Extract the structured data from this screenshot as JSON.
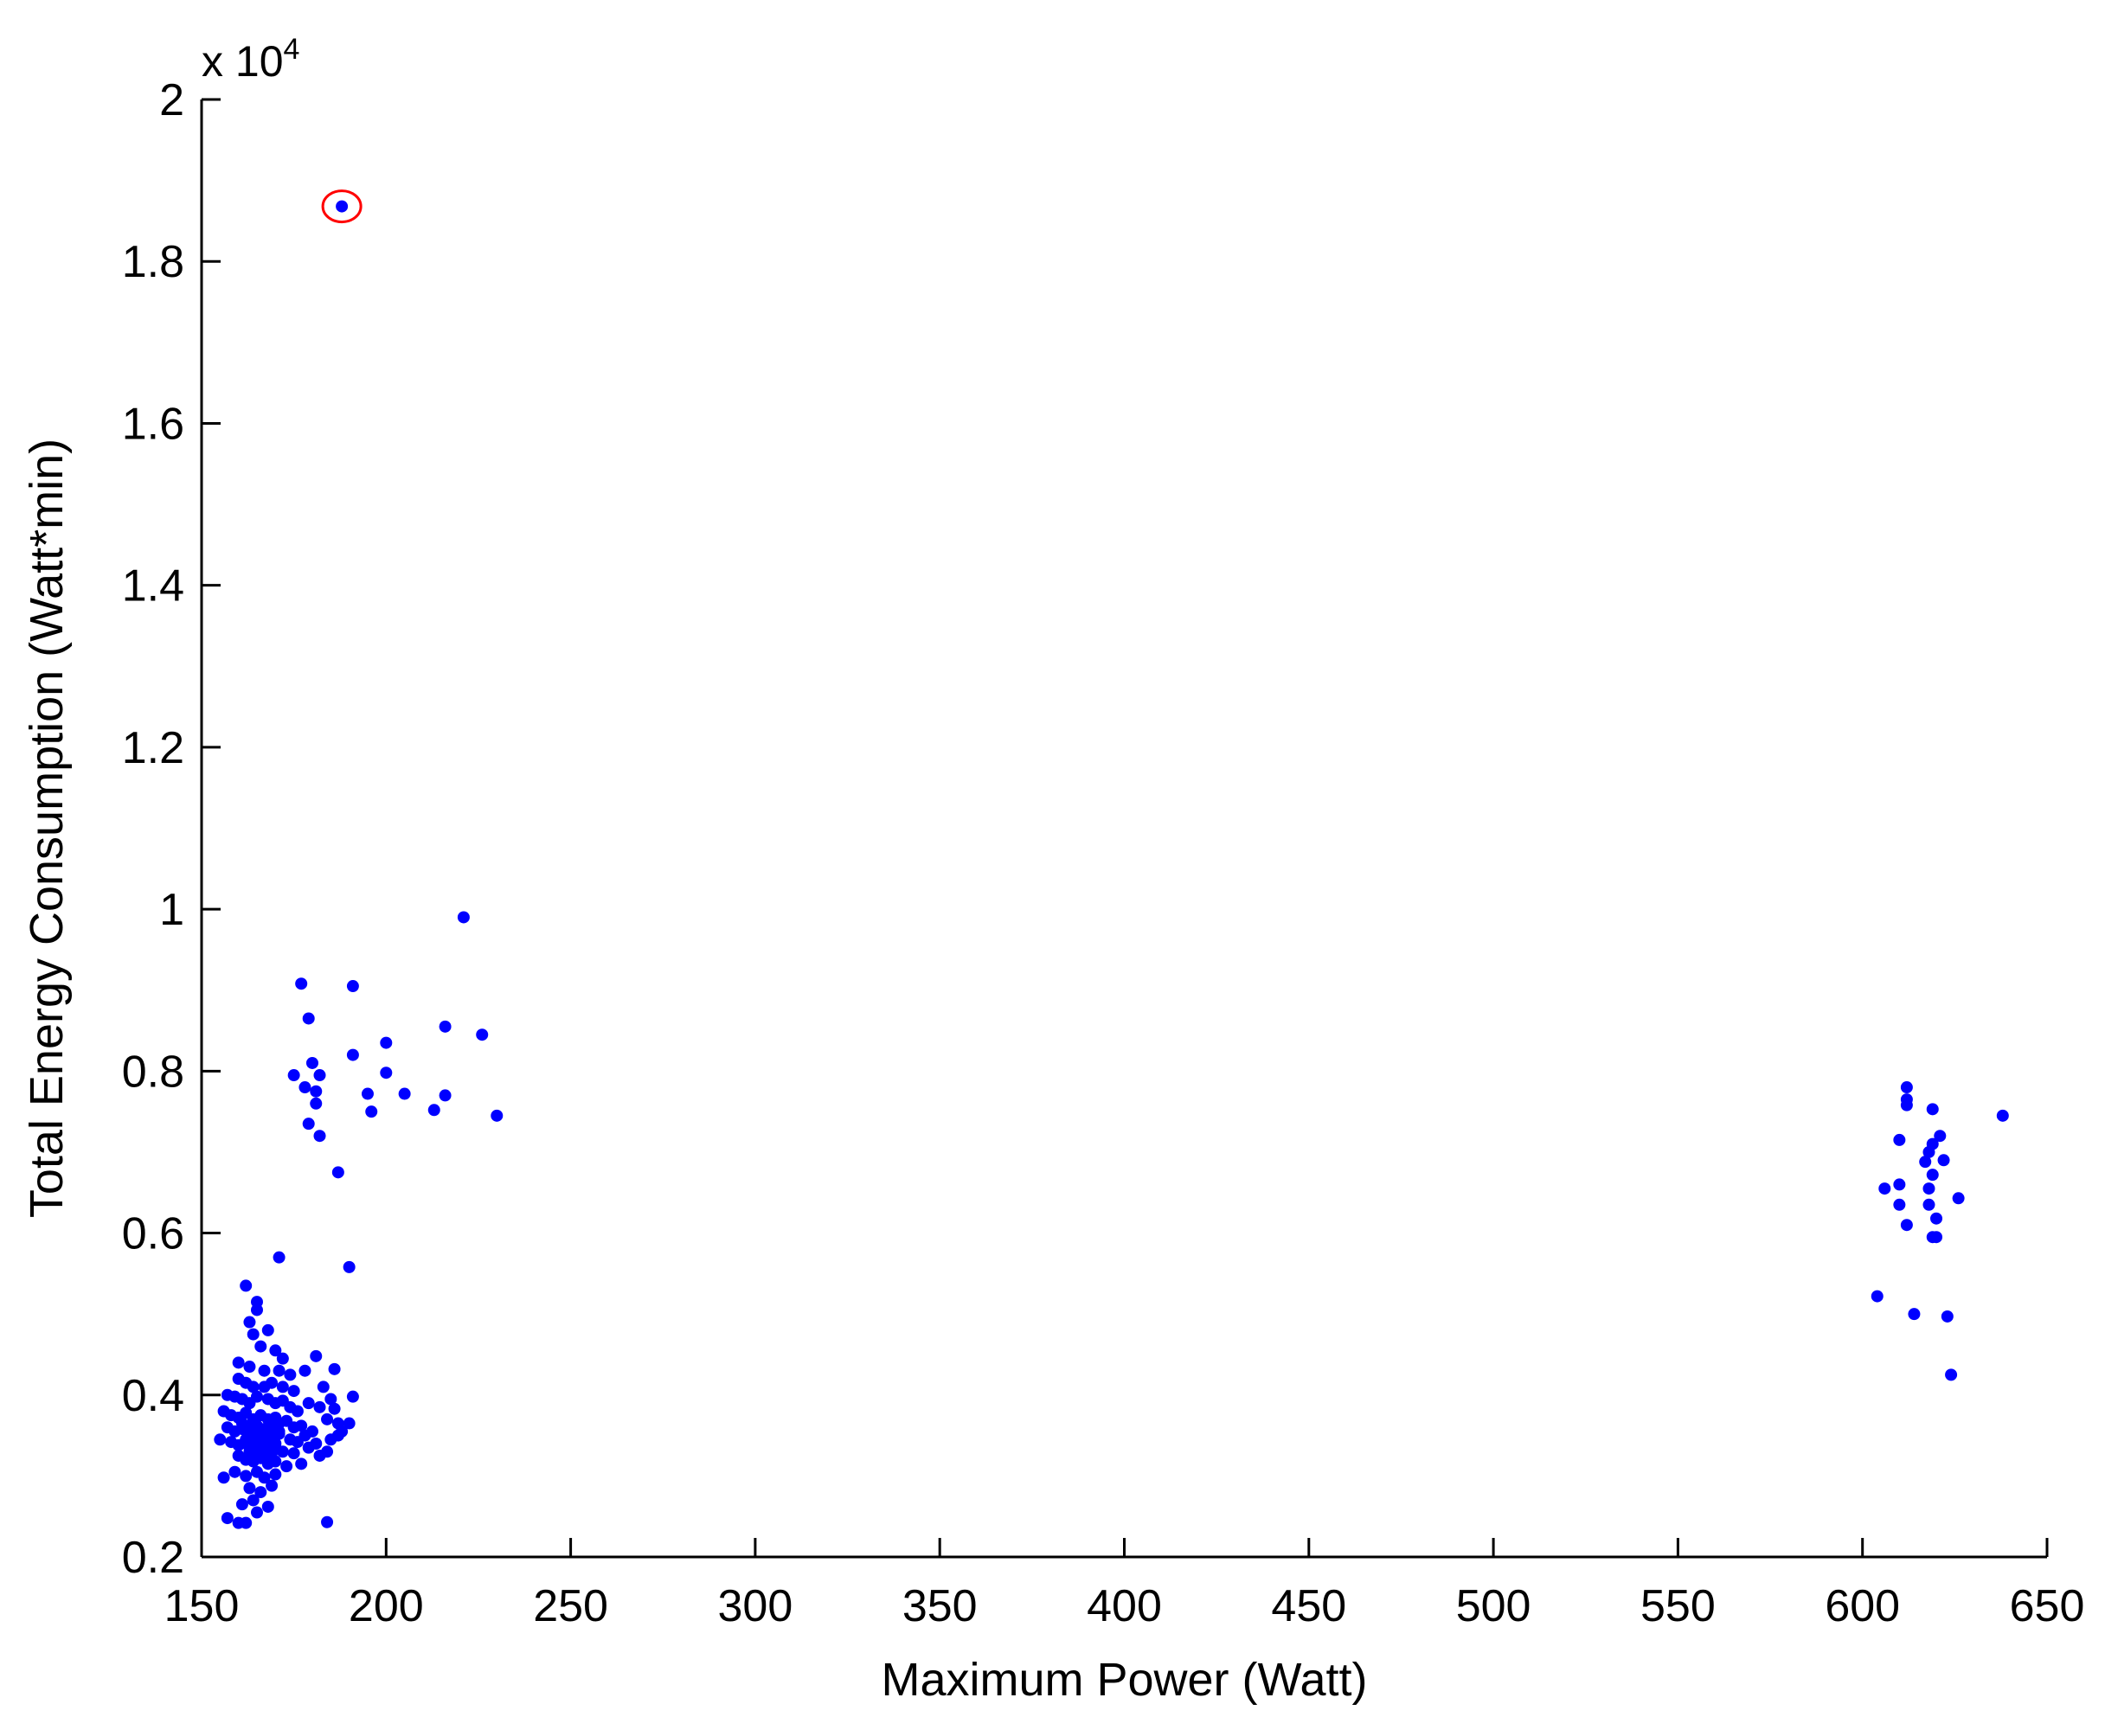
{
  "chart_data": {
    "type": "scatter",
    "title": "",
    "xlabel": "Maximum Power (Watt)",
    "ylabel": "Total Energy Consumption (Watt*min)",
    "y_multiplier": {
      "base": "x 10",
      "exponent": "4"
    },
    "xlim": [
      150,
      650
    ],
    "ylim": [
      0.2,
      2
    ],
    "x_ticks": [
      150,
      200,
      250,
      300,
      350,
      400,
      450,
      500,
      550,
      600,
      650
    ],
    "x_tick_labels": [
      "150",
      "200",
      "250",
      "300",
      "350",
      "400",
      "450",
      "500",
      "550",
      "600",
      "650"
    ],
    "y_ticks": [
      0.2,
      0.4,
      0.6,
      0.8,
      1.0,
      1.2,
      1.4,
      1.6,
      1.8,
      2.0
    ],
    "y_tick_labels": [
      "0.2",
      "0.4",
      "0.6",
      "0.8",
      "1",
      "1.2",
      "1.4",
      "1.6",
      "1.8",
      "2"
    ],
    "grid": false,
    "legend": "none",
    "colors": {
      "points": "#0000ff",
      "highlight": "#ff0000",
      "axes": "#000000"
    },
    "highlighted_point": {
      "x": 188,
      "y": 1.868
    },
    "points": [
      [
        188,
        1.868
      ],
      [
        221,
        0.99
      ],
      [
        177,
        0.908
      ],
      [
        191,
        0.905
      ],
      [
        179,
        0.865
      ],
      [
        216,
        0.855
      ],
      [
        226,
        0.845
      ],
      [
        200,
        0.835
      ],
      [
        191,
        0.82
      ],
      [
        180,
        0.81
      ],
      [
        175,
        0.795
      ],
      [
        182,
        0.795
      ],
      [
        200,
        0.798
      ],
      [
        178,
        0.78
      ],
      [
        195,
        0.772
      ],
      [
        205,
        0.772
      ],
      [
        216,
        0.77
      ],
      [
        181,
        0.775
      ],
      [
        181,
        0.76
      ],
      [
        196,
        0.75
      ],
      [
        213,
        0.752
      ],
      [
        230,
        0.745
      ],
      [
        179,
        0.735
      ],
      [
        182,
        0.72
      ],
      [
        187,
        0.675
      ],
      [
        190,
        0.558
      ],
      [
        171,
        0.57
      ],
      [
        612,
        0.78
      ],
      [
        612,
        0.765
      ],
      [
        612,
        0.758
      ],
      [
        619,
        0.753
      ],
      [
        638,
        0.745
      ],
      [
        621,
        0.72
      ],
      [
        610,
        0.715
      ],
      [
        619,
        0.71
      ],
      [
        618,
        0.7
      ],
      [
        622,
        0.69
      ],
      [
        617,
        0.688
      ],
      [
        619,
        0.672
      ],
      [
        610,
        0.66
      ],
      [
        606,
        0.655
      ],
      [
        618,
        0.655
      ],
      [
        626,
        0.643
      ],
      [
        610,
        0.635
      ],
      [
        618,
        0.635
      ],
      [
        620,
        0.618
      ],
      [
        612,
        0.61
      ],
      [
        619,
        0.595
      ],
      [
        620,
        0.595
      ],
      [
        604,
        0.522
      ],
      [
        614,
        0.5
      ],
      [
        623,
        0.497
      ],
      [
        624,
        0.425
      ],
      [
        162,
        0.535
      ],
      [
        165,
        0.515
      ],
      [
        165,
        0.505
      ],
      [
        163,
        0.49
      ],
      [
        168,
        0.48
      ],
      [
        164,
        0.475
      ],
      [
        166,
        0.46
      ],
      [
        170,
        0.455
      ],
      [
        172,
        0.445
      ],
      [
        181,
        0.448
      ],
      [
        160,
        0.44
      ],
      [
        163,
        0.435
      ],
      [
        167,
        0.43
      ],
      [
        171,
        0.43
      ],
      [
        174,
        0.425
      ],
      [
        178,
        0.43
      ],
      [
        186,
        0.432
      ],
      [
        160,
        0.42
      ],
      [
        162,
        0.415
      ],
      [
        164,
        0.41
      ],
      [
        167,
        0.41
      ],
      [
        169,
        0.415
      ],
      [
        172,
        0.41
      ],
      [
        175,
        0.405
      ],
      [
        183,
        0.41
      ],
      [
        157,
        0.4
      ],
      [
        159,
        0.398
      ],
      [
        161,
        0.395
      ],
      [
        163,
        0.39
      ],
      [
        165,
        0.398
      ],
      [
        168,
        0.395
      ],
      [
        170,
        0.39
      ],
      [
        172,
        0.393
      ],
      [
        174,
        0.385
      ],
      [
        176,
        0.38
      ],
      [
        179,
        0.39
      ],
      [
        182,
        0.385
      ],
      [
        185,
        0.395
      ],
      [
        191,
        0.398
      ],
      [
        186,
        0.383
      ],
      [
        156,
        0.38
      ],
      [
        158,
        0.375
      ],
      [
        160,
        0.372
      ],
      [
        162,
        0.378
      ],
      [
        164,
        0.37
      ],
      [
        166,
        0.375
      ],
      [
        168,
        0.37
      ],
      [
        170,
        0.372
      ],
      [
        171,
        0.365
      ],
      [
        173,
        0.368
      ],
      [
        175,
        0.36
      ],
      [
        177,
        0.362
      ],
      [
        180,
        0.355
      ],
      [
        184,
        0.37
      ],
      [
        187,
        0.365
      ],
      [
        190,
        0.365
      ],
      [
        188,
        0.355
      ],
      [
        157,
        0.36
      ],
      [
        159,
        0.355
      ],
      [
        161,
        0.358
      ],
      [
        163,
        0.352
      ],
      [
        165,
        0.355
      ],
      [
        167,
        0.35
      ],
      [
        169,
        0.348
      ],
      [
        171,
        0.352
      ],
      [
        174,
        0.345
      ],
      [
        176,
        0.342
      ],
      [
        178,
        0.35
      ],
      [
        181,
        0.34
      ],
      [
        185,
        0.345
      ],
      [
        187,
        0.35
      ],
      [
        155,
        0.345
      ],
      [
        158,
        0.342
      ],
      [
        160,
        0.338
      ],
      [
        162,
        0.34
      ],
      [
        164,
        0.335
      ],
      [
        166,
        0.338
      ],
      [
        168,
        0.332
      ],
      [
        170,
        0.335
      ],
      [
        172,
        0.33
      ],
      [
        175,
        0.328
      ],
      [
        179,
        0.335
      ],
      [
        182,
        0.325
      ],
      [
        184,
        0.33
      ],
      [
        160,
        0.325
      ],
      [
        162,
        0.32
      ],
      [
        164,
        0.318
      ],
      [
        166,
        0.322
      ],
      [
        168,
        0.315
      ],
      [
        170,
        0.318
      ],
      [
        173,
        0.312
      ],
      [
        177,
        0.315
      ],
      [
        156,
        0.298
      ],
      [
        159,
        0.305
      ],
      [
        162,
        0.3
      ],
      [
        165,
        0.305
      ],
      [
        167,
        0.298
      ],
      [
        170,
        0.302
      ],
      [
        163,
        0.285
      ],
      [
        166,
        0.28
      ],
      [
        169,
        0.288
      ],
      [
        161,
        0.265
      ],
      [
        164,
        0.27
      ],
      [
        168,
        0.262
      ],
      [
        157,
        0.248
      ],
      [
        160,
        0.242
      ],
      [
        162,
        0.242
      ],
      [
        165,
        0.255
      ],
      [
        184,
        0.243
      ],
      [
        161,
        0.365
      ],
      [
        163,
        0.36
      ],
      [
        165,
        0.362
      ],
      [
        167,
        0.358
      ],
      [
        169,
        0.36
      ],
      [
        171,
        0.355
      ],
      [
        162,
        0.345
      ],
      [
        164,
        0.348
      ],
      [
        166,
        0.342
      ],
      [
        168,
        0.345
      ],
      [
        170,
        0.34
      ],
      [
        163,
        0.33
      ],
      [
        165,
        0.328
      ],
      [
        167,
        0.325
      ],
      [
        169,
        0.328
      ]
    ]
  }
}
